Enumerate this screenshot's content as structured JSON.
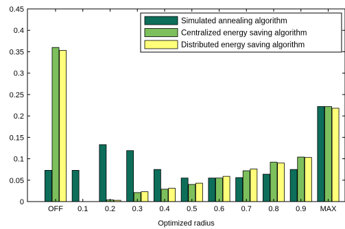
{
  "chart_data": {
    "type": "bar",
    "title": "",
    "xlabel": "Optimized radius",
    "ylabel": "",
    "categories": [
      "OFF",
      "0.1",
      "0.2",
      "0.3",
      "0.4",
      "0.5",
      "0.6",
      "0.7",
      "0.8",
      "0.9",
      "MAX"
    ],
    "ylim": [
      0,
      0.45
    ],
    "yticks": [
      "0",
      "0.05",
      "0.1",
      "0.15",
      "0.2",
      "0.25",
      "0.3",
      "0.35",
      "0.4",
      "0.45"
    ],
    "grid": false,
    "legend_position": "top-right",
    "series": [
      {
        "name": "Simulated annealing algorithm",
        "color": "#0d6e5a",
        "values": [
          0.073,
          0.073,
          0.133,
          0.119,
          0.075,
          0.055,
          0.055,
          0.056,
          0.064,
          0.075,
          0.222
        ]
      },
      {
        "name": "Centralized energy saving algorithm",
        "color": "#7cbf5c",
        "values": [
          0.36,
          0.0,
          0.004,
          0.021,
          0.029,
          0.04,
          0.055,
          0.072,
          0.092,
          0.104,
          0.222
        ]
      },
      {
        "name": "Distributed energy saving algorithm",
        "color": "#ffff7a",
        "values": [
          0.353,
          0.0,
          0.003,
          0.023,
          0.031,
          0.043,
          0.059,
          0.076,
          0.09,
          0.103,
          0.218
        ]
      }
    ]
  }
}
